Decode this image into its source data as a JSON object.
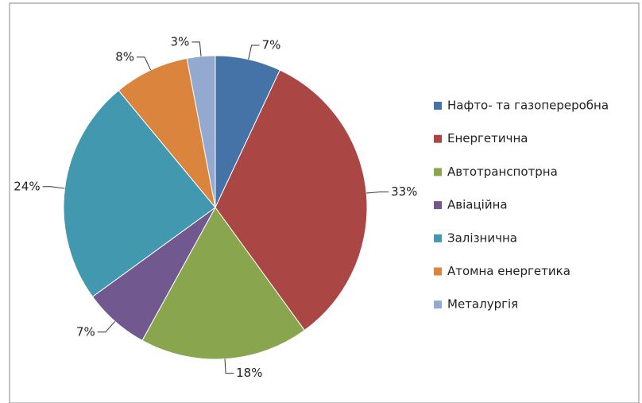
{
  "chart_data": {
    "type": "pie",
    "categories": [
      "Нафто- та газопереробна",
      "Енергетична",
      "Автотранспотрна",
      "Авіаційна",
      "Залізнична",
      "Атомна енергетика",
      "Металургія"
    ],
    "values": [
      7,
      33,
      18,
      7,
      24,
      8,
      3
    ],
    "value_labels": [
      "7%",
      "33%",
      "18%",
      "7%",
      "24%",
      "8%",
      "3%"
    ],
    "colors": [
      "#4572a7",
      "#aa4643",
      "#89a54e",
      "#71588f",
      "#4198af",
      "#db843d",
      "#93a9cf"
    ],
    "legend": "right"
  }
}
